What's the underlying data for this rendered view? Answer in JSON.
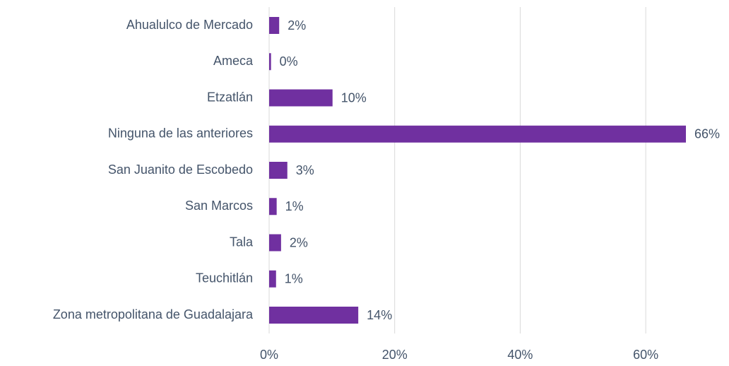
{
  "chart_data": {
    "type": "bar",
    "categories": [
      "Ahualulco de Mercado",
      "Ameca",
      "Etzatlán",
      "Ninguna de las anteriores",
      "San Juanito de Escobedo",
      "San Marcos",
      "Tala",
      "Teuchitlán",
      "Zona metropolitana de Guadalajara"
    ],
    "values": [
      1.6,
      0.3,
      10.1,
      66.4,
      2.9,
      1.2,
      1.9,
      1.1,
      14.2
    ],
    "value_labels": [
      "2%",
      "0%",
      "10%",
      "66%",
      "3%",
      "1%",
      "2%",
      "1%",
      "14%"
    ],
    "color": "#7030a0",
    "xlim": [
      0,
      70
    ],
    "xticks": [
      {
        "value": 0,
        "label": "0%"
      },
      {
        "value": 20,
        "label": "20%"
      },
      {
        "value": 40,
        "label": "40%"
      },
      {
        "value": 60,
        "label": "60%"
      }
    ],
    "grid": true
  }
}
